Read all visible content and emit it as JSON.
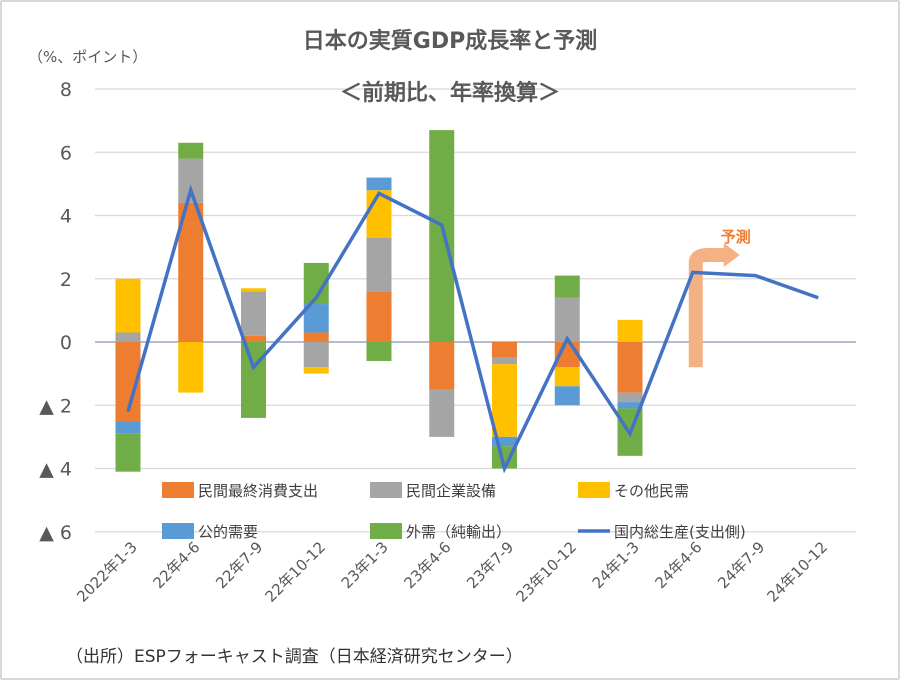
{
  "chart_data": {
    "type": "bar",
    "stacked": true,
    "title": "日本の実質GDP成長率と予測",
    "subtitle": "＜前期比、年率換算＞",
    "ylabel": "（%、ポイント）",
    "xlabel": "",
    "ylim": [
      -6,
      8
    ],
    "yticks": [
      8,
      6,
      4,
      2,
      0,
      -2,
      -4,
      -6
    ],
    "ytick_labels": [
      "8",
      "6",
      "4",
      "2",
      "0",
      "▲ 2",
      "▲ 4",
      "▲ 6"
    ],
    "grid": true,
    "categories": [
      "2022年1-3",
      "22年4-6",
      "22年7-9",
      "22年10-12",
      "23年1-3",
      "23年4-6",
      "23年7-9",
      "23年10-12",
      "24年1-3",
      "24年4-6",
      "24年7-9",
      "24年10-12"
    ],
    "series": [
      {
        "name": "民間最終消費支出",
        "kind": "bar",
        "color": "#ED7D31",
        "values": [
          -2.5,
          4.4,
          0.2,
          0.3,
          1.6,
          -1.5,
          -0.5,
          -0.8,
          -1.6,
          null,
          null,
          null
        ]
      },
      {
        "name": "民間企業設備",
        "kind": "bar",
        "color": "#A5A5A5",
        "values": [
          0.3,
          1.4,
          1.4,
          -0.8,
          1.7,
          -1.5,
          -0.2,
          1.4,
          -0.3,
          null,
          null,
          null
        ]
      },
      {
        "name": "その他民需",
        "kind": "bar",
        "color": "#FFC000",
        "values": [
          1.7,
          -1.6,
          0.1,
          -0.2,
          1.5,
          0.0,
          -2.3,
          -0.6,
          0.7,
          null,
          null,
          null
        ]
      },
      {
        "name": "公的需要",
        "kind": "bar",
        "color": "#5B9BD5",
        "values": [
          -0.4,
          0.0,
          0.0,
          0.9,
          0.4,
          0.0,
          -0.3,
          -0.6,
          -0.2,
          null,
          null,
          null
        ]
      },
      {
        "name": "外需（純輸出）",
        "kind": "bar",
        "color": "#70AD47",
        "values": [
          -1.2,
          0.5,
          -2.4,
          1.3,
          -0.6,
          6.7,
          -0.7,
          0.7,
          -1.5,
          null,
          null,
          null
        ]
      },
      {
        "name": "国内総生産(支出側)",
        "kind": "line",
        "color": "#4472C4",
        "values": [
          -2.2,
          4.8,
          -0.8,
          1.4,
          4.7,
          3.7,
          -4.0,
          0.1,
          -2.9,
          2.2,
          2.1,
          1.4
        ]
      }
    ],
    "annotations": [
      {
        "text": "予測",
        "color": "#F4B183",
        "text_color": "#ED7D31",
        "arrow": "bent-up-right",
        "from_category": "24年4-6"
      }
    ],
    "legend": {
      "placement": "bottom-inside",
      "columns": 3
    },
    "source_note": "（出所）ESPフォーキャスト調査（日本経済研究センター）"
  }
}
